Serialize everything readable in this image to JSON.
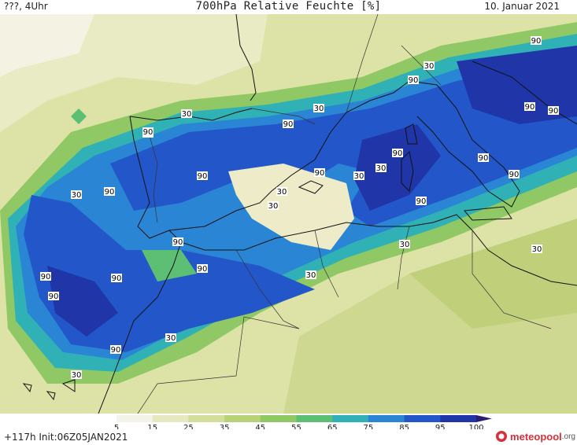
{
  "header": {
    "left": "???, 4Uhr",
    "title": "700hPa Relative Feuchte [%]",
    "right": "10. Januar 2021"
  },
  "legend": {
    "ticks": [
      "5",
      "15",
      "25",
      "35",
      "45",
      "55",
      "65",
      "75",
      "85",
      "95",
      "100"
    ],
    "colors": [
      "#f4f3ea",
      "#e6e8c2",
      "#d3de9a",
      "#b9d27a",
      "#8fc864",
      "#5dbf74",
      "#2fb1b6",
      "#2a86d4",
      "#2357c9",
      "#1f35a8",
      "#2a1f6e"
    ]
  },
  "map_labels": [
    {
      "text": "90"
    },
    {
      "text": "30"
    },
    {
      "text": "30"
    },
    {
      "text": "90"
    },
    {
      "text": "30"
    },
    {
      "text": "90"
    },
    {
      "text": "90"
    },
    {
      "text": "90"
    },
    {
      "text": "30"
    },
    {
      "text": "90"
    },
    {
      "text": "90"
    },
    {
      "text": "90"
    },
    {
      "text": "30"
    },
    {
      "text": "30"
    },
    {
      "text": "90"
    },
    {
      "text": "90"
    },
    {
      "text": "30"
    },
    {
      "text": "90"
    },
    {
      "text": "90"
    },
    {
      "text": "90"
    },
    {
      "text": "90"
    },
    {
      "text": "30"
    },
    {
      "text": "90"
    },
    {
      "text": "90"
    },
    {
      "text": "30"
    },
    {
      "text": "90"
    },
    {
      "text": "30"
    },
    {
      "text": "30"
    },
    {
      "text": "90"
    },
    {
      "text": "30"
    },
    {
      "text": "90"
    },
    {
      "text": "30"
    }
  ],
  "footer": {
    "left": "+117h  Init:06Z05JAN2021",
    "logo_name": "meteopool",
    "logo_tld": ".org"
  }
}
